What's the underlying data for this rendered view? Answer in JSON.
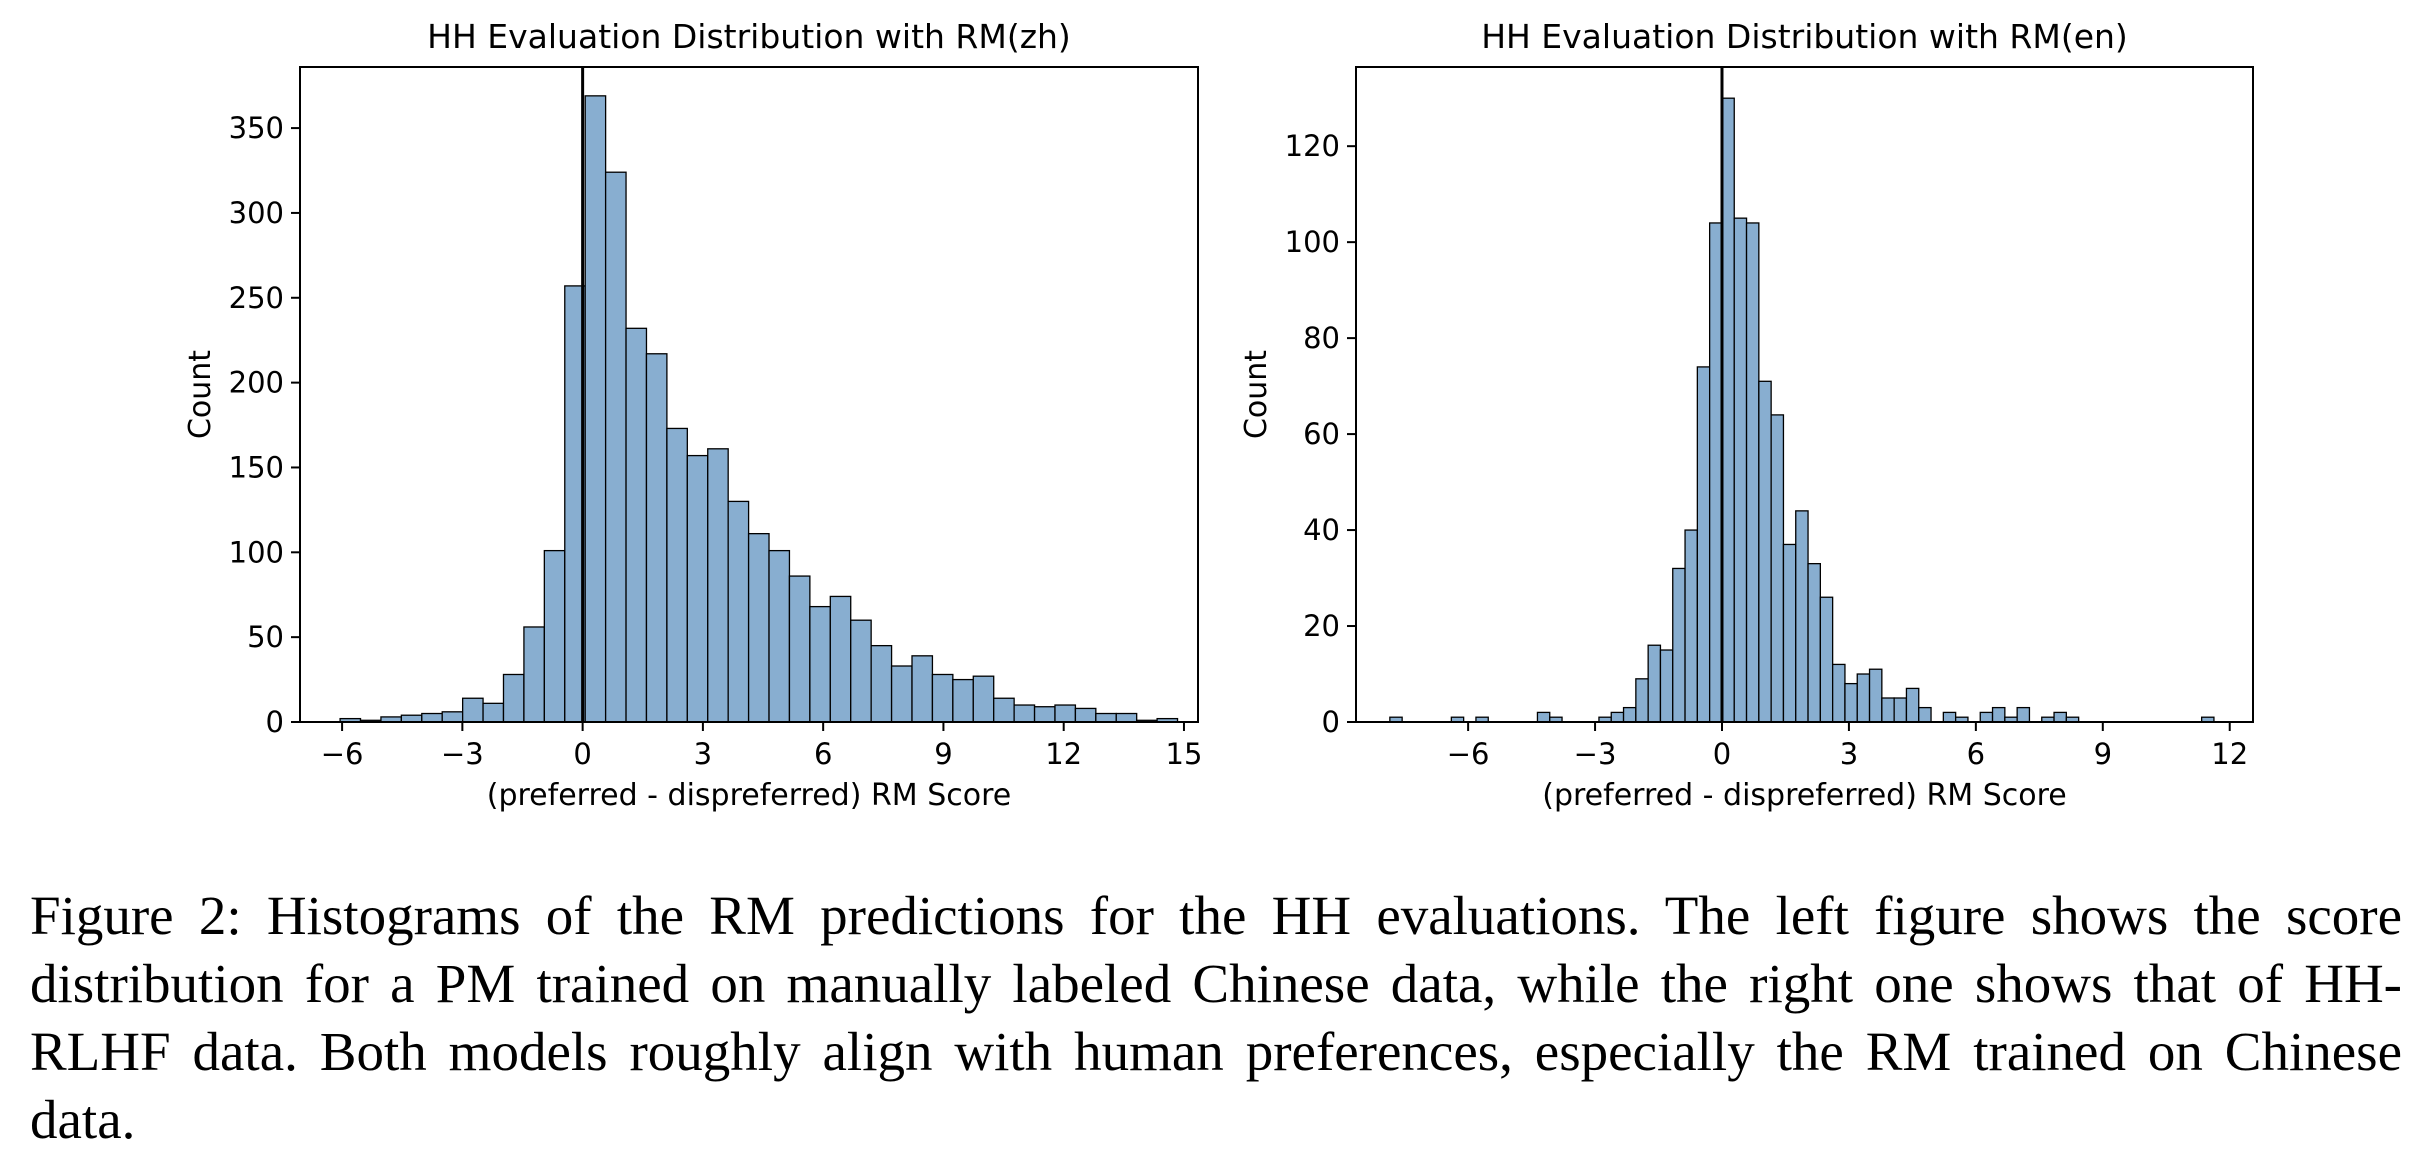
{
  "chart_data": [
    {
      "type": "bar",
      "title": "HH Evaluation Distribution with RM(zh)",
      "xlabel": "(preferred - dispreferred) RM Score",
      "ylabel": "Count",
      "xlim": [
        -7.05,
        15.35
      ],
      "ylim": [
        0,
        386
      ],
      "xticks": [
        -6,
        -3,
        0,
        3,
        6,
        9,
        12,
        15
      ],
      "xtick_labels": [
        "−6",
        "−3",
        "0",
        "3",
        "6",
        "9",
        "12",
        "15"
      ],
      "yticks": [
        0,
        50,
        100,
        150,
        200,
        250,
        300,
        350
      ],
      "ytick_labels": [
        "0",
        "50",
        "100",
        "150",
        "200",
        "250",
        "300",
        "350"
      ],
      "vline_x": 0,
      "bin_start": -6.05,
      "bin_width": 0.5095,
      "values": [
        2,
        1,
        3,
        4,
        5,
        6,
        14,
        11,
        28,
        56,
        101,
        257,
        369,
        324,
        232,
        217,
        173,
        157,
        161,
        130,
        111,
        101,
        86,
        68,
        74,
        60,
        45,
        33,
        39,
        28,
        25,
        27,
        14,
        10,
        9,
        10,
        8,
        5,
        5,
        1,
        2
      ],
      "bar_color": "#88aed0",
      "edge_color": "#000000"
    },
    {
      "type": "bar",
      "title": "HH Evaluation Distribution with RM(en)",
      "xlabel": "(preferred - dispreferred) RM Score",
      "ylabel": "Count",
      "xlim": [
        -8.65,
        12.55
      ],
      "ylim": [
        0,
        136.5
      ],
      "xticks": [
        -6,
        -3,
        0,
        3,
        6,
        9,
        12
      ],
      "xtick_labels": [
        "−6",
        "−3",
        "0",
        "3",
        "6",
        "9",
        "12"
      ],
      "yticks": [
        0,
        20,
        40,
        60,
        80,
        100,
        120
      ],
      "ytick_labels": [
        "0",
        "20",
        "40",
        "60",
        "80",
        "100",
        "120"
      ],
      "vline_x": 0,
      "bin_start": -7.85,
      "bin_width": 0.2907,
      "values": [
        1,
        0,
        0,
        0,
        0,
        1,
        0,
        1,
        0,
        0,
        0,
        0,
        2,
        1,
        0,
        0,
        0,
        1,
        2,
        3,
        9,
        16,
        15,
        32,
        40,
        74,
        104,
        130,
        105,
        104,
        71,
        64,
        37,
        44,
        33,
        26,
        12,
        8,
        10,
        11,
        5,
        5,
        7,
        3,
        0,
        2,
        1,
        0,
        2,
        3,
        1,
        3,
        0,
        1,
        2,
        1,
        0,
        0,
        0,
        0,
        0,
        0,
        0,
        0,
        0,
        0,
        1
      ],
      "bar_color": "#88aed0",
      "edge_color": "#000000"
    }
  ],
  "caption": "Figure 2: Histograms of the RM predictions for the HH evaluations. The left figure shows the score distribution for a PM trained on manually labeled Chinese data, while the right one shows that of HH-RLHF data. Both models roughly align with human preferences, especially the RM trained on Chinese data."
}
